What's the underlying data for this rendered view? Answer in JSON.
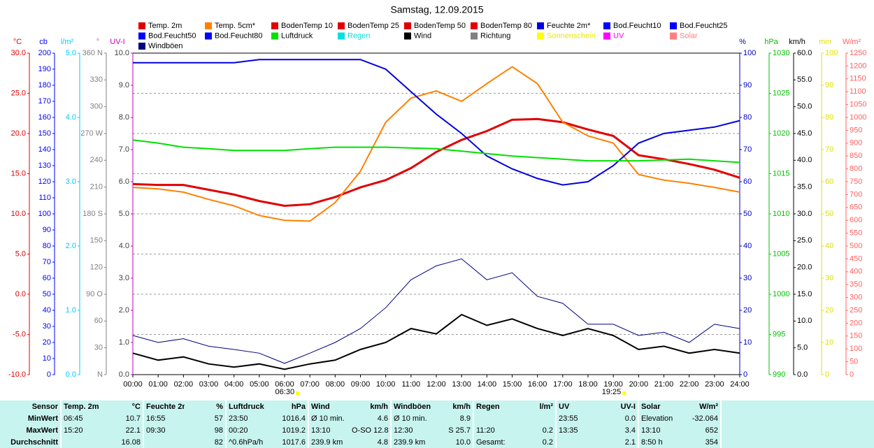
{
  "chart_data": {
    "type": "line",
    "title": "Samstag, 12.09.2015",
    "x": [
      "00:00",
      "01:00",
      "02:00",
      "03:00",
      "04:00",
      "05:00",
      "06:00",
      "07:00",
      "08:00",
      "09:00",
      "10:00",
      "11:00",
      "12:00",
      "13:00",
      "14:00",
      "15:00",
      "16:00",
      "17:00",
      "18:00",
      "19:00",
      "20:00",
      "21:00",
      "22:00",
      "23:00",
      "24:00"
    ],
    "sun_times": [
      "06:30",
      "19:25"
    ],
    "grid": true,
    "axes": [
      {
        "label": "°C",
        "side": "left",
        "color": "#e00000",
        "lim": [
          -10,
          30
        ],
        "ticks": [
          {
            "value": -10,
            "label": "-10.0"
          },
          {
            "value": -5,
            "label": "-5.0"
          },
          {
            "value": 0,
            "label": "0.0"
          },
          {
            "value": 5,
            "label": "5.0"
          },
          {
            "value": 10,
            "label": "10.0"
          },
          {
            "value": 15,
            "label": "15.0"
          },
          {
            "value": 20,
            "label": "20.0"
          },
          {
            "value": 25,
            "label": "25.0"
          },
          {
            "value": 30,
            "label": "30.0"
          }
        ]
      },
      {
        "label": "cb",
        "side": "left",
        "color": "#0000ff",
        "lim": [
          0,
          200
        ],
        "ticks": [
          0,
          10,
          20,
          30,
          40,
          50,
          60,
          70,
          80,
          90,
          100,
          110,
          120,
          130,
          140,
          150,
          160,
          170,
          180,
          190,
          200
        ]
      },
      {
        "label": "l/m²",
        "side": "left",
        "color": "#00c8ff",
        "lim": [
          0,
          5
        ],
        "ticks": [
          {
            "value": 0,
            "label": "0.0"
          },
          {
            "value": 1,
            "label": "1.0"
          },
          {
            "value": 2,
            "label": "2.0"
          },
          {
            "value": 3,
            "label": "3.0"
          },
          {
            "value": 4,
            "label": "4.0"
          },
          {
            "value": 5,
            "label": "5.0"
          }
        ]
      },
      {
        "label": "°",
        "side": "left",
        "color": "#808080",
        "lim": [
          0,
          360
        ],
        "ticks": [
          {
            "value": 0,
            "label": "N"
          },
          30,
          60,
          {
            "value": 90,
            "label": "90 O"
          },
          120,
          150,
          {
            "value": 180,
            "label": "180 S"
          },
          210,
          240,
          {
            "value": 270,
            "label": "270 W"
          },
          300,
          330,
          {
            "value": 360,
            "label": "360 N"
          }
        ]
      },
      {
        "label": "UV-I",
        "side": "left",
        "color": "#c000c0",
        "lim": [
          0,
          10
        ],
        "ticks": [
          {
            "value": 0,
            "label": "0.0"
          },
          {
            "value": 1,
            "label": "1.0"
          },
          {
            "value": 2,
            "label": "2.0"
          },
          {
            "value": 3,
            "label": "3.0"
          },
          {
            "value": 4,
            "label": "4.0"
          },
          {
            "value": 5,
            "label": "5.0"
          },
          {
            "value": 6,
            "label": "6.0"
          },
          {
            "value": 7,
            "label": "7.0"
          },
          {
            "value": 8,
            "label": "8.0"
          },
          {
            "value": 9,
            "label": "9.0"
          },
          {
            "value": 10,
            "label": "10.0"
          }
        ]
      },
      {
        "label": "%",
        "side": "right",
        "color": "#0000c0",
        "lim": [
          0,
          100
        ],
        "ticks": [
          0,
          10,
          20,
          30,
          40,
          50,
          60,
          70,
          80,
          90,
          100
        ]
      },
      {
        "label": "hPa",
        "side": "right",
        "color": "#00c000",
        "lim": [
          990,
          1030
        ],
        "ticks": [
          990,
          995,
          1000,
          1005,
          1010,
          1015,
          1020,
          1025,
          1030
        ]
      },
      {
        "label": "km/h",
        "side": "right",
        "color": "#000000",
        "lim": [
          0,
          60
        ],
        "ticks": [
          {
            "value": 0,
            "label": "0.0"
          },
          {
            "value": 5,
            "label": "5.0"
          },
          {
            "value": 10,
            "label": "10.0"
          },
          {
            "value": 15,
            "label": "15.0"
          },
          {
            "value": 20,
            "label": "20.0"
          },
          {
            "value": 25,
            "label": "25.0"
          },
          {
            "value": 30,
            "label": "30.0"
          },
          {
            "value": 35,
            "label": "35.0"
          },
          {
            "value": 40,
            "label": "40.0"
          },
          {
            "value": 45,
            "label": "45.0"
          },
          {
            "value": 50,
            "label": "50.0"
          },
          {
            "value": 55,
            "label": "55.0"
          },
          {
            "value": 60,
            "label": "60.0"
          }
        ]
      },
      {
        "label": "min",
        "side": "right",
        "color": "#e0e000",
        "lim": [
          0,
          100
        ],
        "ticks": [
          0,
          10,
          20,
          30,
          40,
          50,
          60,
          70,
          80,
          90,
          100
        ]
      },
      {
        "label": "W/m²",
        "side": "right",
        "color": "#ff6060",
        "lim": [
          0,
          1250
        ],
        "ticks": [
          0,
          50,
          100,
          150,
          200,
          250,
          300,
          350,
          400,
          450,
          500,
          550,
          600,
          650,
          700,
          750,
          800,
          850,
          900,
          950,
          1000,
          1050,
          1100,
          1150,
          1200,
          1250
        ]
      }
    ],
    "series": [
      {
        "name": "Temp. 2m",
        "color": "#e00000",
        "axis": 0,
        "values": [
          13.7,
          13.6,
          13.6,
          13.0,
          12.4,
          11.6,
          11.0,
          11.2,
          12.1,
          13.3,
          14.2,
          15.7,
          17.7,
          19.2,
          20.3,
          21.7,
          21.8,
          21.4,
          20.5,
          19.7,
          17.3,
          16.8,
          16.2,
          15.5,
          14.5
        ]
      },
      {
        "name": "Temp. 5cm*",
        "color": "#ff8000",
        "axis": 0,
        "values": [
          13.3,
          13.1,
          12.7,
          11.8,
          11.0,
          9.8,
          9.2,
          9.1,
          11.4,
          15.3,
          21.4,
          24.4,
          25.3,
          24.0,
          26.2,
          28.3,
          26.2,
          21.4,
          19.7,
          18.8,
          14.9,
          14.2,
          13.8,
          13.3,
          12.7
        ]
      },
      {
        "name": "BodenTemp 10",
        "color": "#e00000"
      },
      {
        "name": "BodenTemp 25",
        "color": "#e00000"
      },
      {
        "name": "BodenTemp 50",
        "color": "#e00000"
      },
      {
        "name": "BodenTemp 80",
        "color": "#e00000"
      },
      {
        "name": "Feuchte 2m*",
        "color": "#0000e0",
        "axis": 5,
        "values": [
          97,
          97,
          97,
          97,
          97,
          98,
          98,
          98,
          98,
          98,
          95,
          88,
          81,
          75,
          68,
          64,
          61,
          59,
          60,
          65,
          72,
          75,
          76,
          77,
          79
        ]
      },
      {
        "name": "Bod.Feucht10",
        "color": "#0000ff"
      },
      {
        "name": "Bod.Feucht25",
        "color": "#0000ff"
      },
      {
        "name": "Bod.Feucht50",
        "color": "#0000ff"
      },
      {
        "name": "Bod.Feucht80",
        "color": "#0000ff"
      },
      {
        "name": "Luftdruck",
        "color": "#00e000",
        "axis": 6,
        "values": [
          1019.2,
          1018.8,
          1018.3,
          1018.1,
          1017.9,
          1017.9,
          1017.9,
          1018.1,
          1018.3,
          1018.3,
          1018.3,
          1018.2,
          1018.1,
          1017.8,
          1017.5,
          1017.2,
          1017.0,
          1016.8,
          1016.6,
          1016.6,
          1016.6,
          1016.7,
          1016.8,
          1016.6,
          1016.4
        ]
      },
      {
        "name": "Regen",
        "color": "#00e0e0",
        "label_color": "#00e0e0"
      },
      {
        "name": "Wind",
        "color": "#000000",
        "axis": 7,
        "values": [
          4.0,
          2.7,
          3.3,
          2.0,
          1.4,
          2.0,
          1.0,
          2.0,
          2.7,
          4.7,
          6.0,
          8.6,
          7.6,
          11.2,
          9.2,
          10.4,
          8.6,
          7.3,
          8.6,
          7.3,
          4.7,
          5.3,
          4.0,
          4.7,
          4.0
        ]
      },
      {
        "name": "Richtung",
        "color": "#808080"
      },
      {
        "name": "Sonnenschein",
        "color": "#ffff00",
        "label_color": "#e8e800"
      },
      {
        "name": "UV",
        "color": "#ff00ff",
        "label_color": "#ff00ff"
      },
      {
        "name": "Solar",
        "color": "#ff8080",
        "label_color": "#ff8080"
      },
      {
        "name": "Windböen",
        "color": "#000080",
        "axis": 7,
        "values": [
          7.3,
          6.0,
          6.7,
          5.3,
          4.7,
          4.0,
          2.1,
          4.0,
          6.0,
          8.6,
          12.5,
          17.7,
          20.3,
          21.6,
          17.7,
          19.0,
          14.6,
          13.3,
          9.4,
          9.4,
          7.3,
          7.9,
          6.0,
          9.4,
          8.6
        ]
      }
    ]
  },
  "table": {
    "header": [
      "Sensor",
      [
        "Temp. 2m",
        "°C"
      ],
      [
        "Feuchte 2m",
        "%"
      ],
      [
        "Luftdruck",
        "hPa"
      ],
      [
        "Wind",
        "km/h"
      ],
      [
        "Windböen",
        "km/h"
      ],
      [
        "Regen",
        "l/m²"
      ],
      [
        "UV",
        "UV-I"
      ],
      [
        "Solar",
        "W/m²"
      ]
    ],
    "rows": [
      {
        "label": "MinWert",
        "cells": [
          [
            "06:45",
            "10.7"
          ],
          [
            "16:55",
            "57"
          ],
          [
            "23:50",
            "1016.4"
          ],
          [
            "Ø 10 min.",
            "4.6"
          ],
          [
            "Ø 10 min.",
            "8.9"
          ],
          [
            null,
            null
          ],
          [
            "23:55",
            "0.0"
          ],
          [
            "Elevation",
            "-32.064"
          ]
        ]
      },
      {
        "label": "MaxWert",
        "cells": [
          [
            "15:20",
            "22.1"
          ],
          [
            "09:30",
            "98"
          ],
          [
            "00:20",
            "1019.2"
          ],
          [
            "13:10",
            "O-SO 12.8"
          ],
          [
            "12:30",
            "S 25.7"
          ],
          [
            "11:20",
            "0.2"
          ],
          [
            "13:35",
            "3.4"
          ],
          [
            "13:10",
            "652"
          ]
        ]
      },
      {
        "label": "Durchschnitt",
        "cells": [
          [
            null,
            "16.08"
          ],
          [
            null,
            "82"
          ],
          [
            "^0.6hPa/h",
            "1017.6"
          ],
          [
            "239.9 km",
            "4.8"
          ],
          [
            "239.9 km",
            "10.0"
          ],
          [
            "Gesamt:",
            "0.2"
          ],
          [
            null,
            "2.1"
          ],
          [
            "8:50 h",
            "354"
          ]
        ]
      }
    ]
  }
}
